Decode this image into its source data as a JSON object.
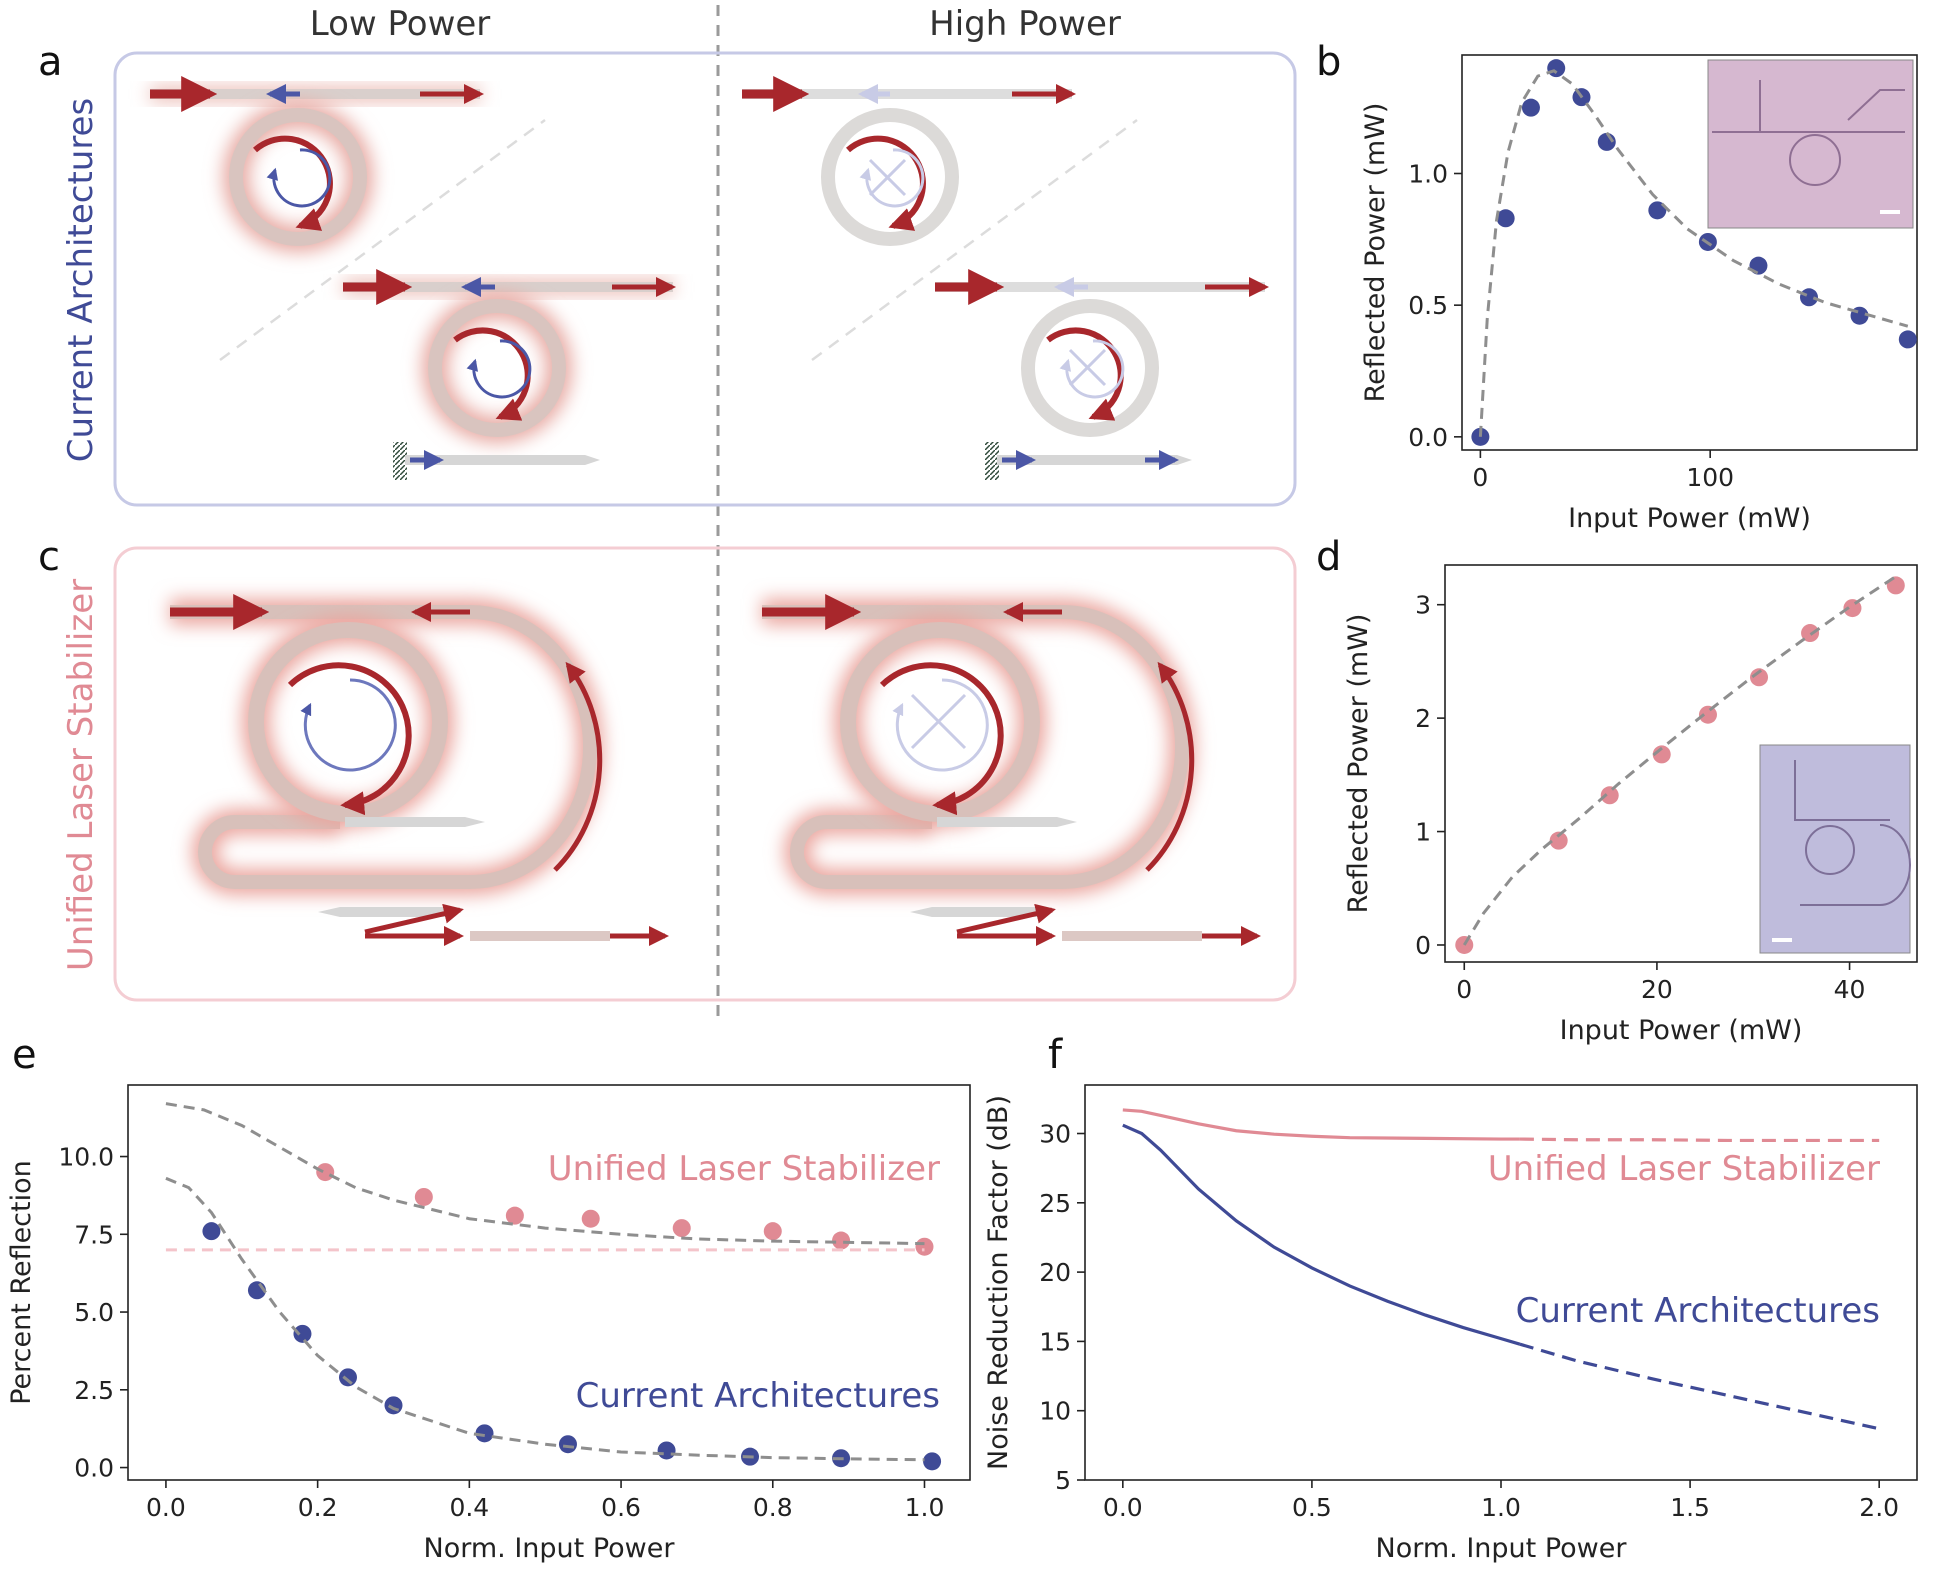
{
  "figure": {
    "column_headers": {
      "left": "Low Power",
      "right": "High Power"
    },
    "panel_letters": {
      "a": "a",
      "b": "b",
      "c": "c",
      "d": "d",
      "e": "e",
      "f": "f"
    },
    "row_labels": {
      "current": "Current Architectures",
      "unified": "Unified Laser Stabilizer"
    },
    "colors": {
      "blue": "#3f4a96",
      "pink": "#e08a94",
      "red": "#a8272c",
      "grey": "#8e8e8e",
      "current_box": "#c6c9e6",
      "unified_box": "#f4cdd3"
    }
  },
  "chart_data": [
    {
      "id": "b",
      "type": "scatter",
      "xlabel": "Input Power (mW)",
      "ylabel": "Reflected Power (mW)",
      "xlim": [
        -8,
        190
      ],
      "ylim": [
        -0.05,
        1.45
      ],
      "xticks": [
        0,
        100
      ],
      "xtick_labels": [
        "0",
        "100"
      ],
      "yticks": [
        0.0,
        0.5,
        1.0
      ],
      "ytick_labels": [
        "0.0",
        "0.5",
        "1.0"
      ],
      "series": [
        {
          "name": "measured",
          "color": "#3f4a96",
          "x": [
            0,
            11,
            22,
            33,
            44,
            55,
            77,
            99,
            121,
            143,
            165,
            186
          ],
          "y": [
            0.0,
            0.83,
            1.25,
            1.4,
            1.29,
            1.12,
            0.86,
            0.74,
            0.65,
            0.53,
            0.46,
            0.37
          ]
        },
        {
          "name": "fit",
          "style": "dashed",
          "color": "#8e8e8e",
          "x": [
            0,
            3,
            7,
            12,
            18,
            25,
            32,
            40,
            50,
            60,
            75,
            90,
            110,
            130,
            150,
            170,
            186
          ],
          "y": [
            0.0,
            0.45,
            0.82,
            1.08,
            1.27,
            1.37,
            1.39,
            1.34,
            1.22,
            1.09,
            0.92,
            0.79,
            0.67,
            0.58,
            0.51,
            0.46,
            0.42
          ]
        }
      ]
    },
    {
      "id": "d",
      "type": "scatter",
      "xlabel": "Input Power (mW)",
      "ylabel": "Reflected Power (mW)",
      "xlim": [
        -2,
        47
      ],
      "ylim": [
        -0.15,
        3.35
      ],
      "xticks": [
        0,
        20,
        40
      ],
      "xtick_labels": [
        "0",
        "20",
        "40"
      ],
      "yticks": [
        0,
        1,
        2,
        3
      ],
      "ytick_labels": [
        "0",
        "1",
        "2",
        "3"
      ],
      "series": [
        {
          "name": "measured",
          "color": "#e08a94",
          "x": [
            0,
            9.8,
            15.1,
            20.5,
            25.3,
            30.6,
            35.9,
            40.3,
            44.8
          ],
          "y": [
            0.0,
            0.92,
            1.32,
            1.68,
            2.03,
            2.36,
            2.75,
            2.97,
            3.17
          ]
        },
        {
          "name": "fit",
          "style": "dashed",
          "color": "#8e8e8e",
          "x": [
            0,
            2,
            5,
            8,
            12,
            16,
            20,
            25,
            30,
            35,
            40,
            45
          ],
          "y": [
            0.0,
            0.28,
            0.6,
            0.84,
            1.12,
            1.42,
            1.7,
            2.04,
            2.37,
            2.68,
            2.98,
            3.26
          ]
        }
      ]
    },
    {
      "id": "e",
      "type": "scatter",
      "xlabel": "Norm. Input Power",
      "ylabel": "Percent Reflection",
      "xlim": [
        -0.05,
        1.06
      ],
      "ylim": [
        -0.4,
        12.3
      ],
      "xticks": [
        0.0,
        0.2,
        0.4,
        0.6,
        0.8,
        1.0
      ],
      "xtick_labels": [
        "0.0",
        "0.2",
        "0.4",
        "0.6",
        "0.8",
        "1.0"
      ],
      "yticks": [
        0.0,
        2.5,
        5.0,
        7.5,
        10.0
      ],
      "ytick_labels": [
        "0.0",
        "2.5",
        "5.0",
        "7.5",
        "10.0"
      ],
      "series": [
        {
          "name": "Unified Laser Stabilizer",
          "color": "#e08a94",
          "x": [
            0.21,
            0.34,
            0.46,
            0.56,
            0.68,
            0.8,
            0.89,
            1.0
          ],
          "y": [
            9.5,
            8.7,
            8.1,
            8.0,
            7.7,
            7.6,
            7.3,
            7.1
          ]
        },
        {
          "name": "Current Architectures",
          "color": "#3f4a96",
          "x": [
            0.06,
            0.12,
            0.18,
            0.24,
            0.3,
            0.42,
            0.53,
            0.66,
            0.77,
            0.89,
            1.01
          ],
          "y": [
            7.6,
            5.7,
            4.3,
            2.9,
            2.0,
            1.1,
            0.75,
            0.55,
            0.35,
            0.3,
            0.2
          ]
        },
        {
          "name": "unified fit",
          "style": "dashed",
          "color": "#8e8e8e",
          "x": [
            0.0,
            0.05,
            0.1,
            0.15,
            0.2,
            0.25,
            0.3,
            0.4,
            0.5,
            0.6,
            0.7,
            0.8,
            0.9,
            1.0
          ],
          "y": [
            11.7,
            11.5,
            11.0,
            10.3,
            9.6,
            9.0,
            8.6,
            8.0,
            7.7,
            7.5,
            7.35,
            7.28,
            7.24,
            7.2
          ]
        },
        {
          "name": "current fit",
          "style": "dashed",
          "color": "#8e8e8e",
          "x": [
            0.0,
            0.03,
            0.06,
            0.1,
            0.15,
            0.2,
            0.25,
            0.3,
            0.4,
            0.5,
            0.6,
            0.7,
            0.8,
            0.9,
            1.0
          ],
          "y": [
            9.3,
            9.0,
            8.2,
            6.7,
            5.0,
            3.6,
            2.6,
            1.9,
            1.1,
            0.75,
            0.5,
            0.4,
            0.32,
            0.28,
            0.25
          ]
        },
        {
          "name": "floor",
          "style": "dashed",
          "color": "#f4c4ca",
          "x": [
            0.0,
            1.0
          ],
          "y": [
            7.0,
            7.0
          ]
        }
      ],
      "annotations": [
        {
          "text": "Unified Laser Stabilizer",
          "color": "#e08a94"
        },
        {
          "text": "Current Architectures",
          "color": "#3f4a96"
        }
      ]
    },
    {
      "id": "f",
      "type": "line",
      "xlabel": "Norm. Input Power",
      "ylabel": "Noise Reduction Factor (dB)",
      "xlim": [
        -0.1,
        2.1
      ],
      "ylim": [
        5,
        33.5
      ],
      "xticks": [
        0.0,
        0.5,
        1.0,
        1.5,
        2.0
      ],
      "xtick_labels": [
        "0.0",
        "0.5",
        "1.0",
        "1.5",
        "2.0"
      ],
      "yticks": [
        5,
        10,
        15,
        20,
        25,
        30
      ],
      "ytick_labels": [
        "5",
        "10",
        "15",
        "20",
        "25",
        "30"
      ],
      "series": [
        {
          "name": "Unified Laser Stabilizer",
          "color": "#e08a94",
          "x": [
            0.0,
            0.05,
            0.1,
            0.2,
            0.3,
            0.4,
            0.5,
            0.6,
            0.8,
            1.0,
            1.05,
            1.2,
            1.4,
            1.6,
            1.8,
            2.0
          ],
          "y": [
            31.7,
            31.6,
            31.3,
            30.7,
            30.2,
            29.95,
            29.8,
            29.7,
            29.65,
            29.6,
            29.6,
            29.55,
            29.55,
            29.5,
            29.5,
            29.5
          ]
        },
        {
          "name": "Current Architectures",
          "color": "#3f4a96",
          "x": [
            0.0,
            0.05,
            0.1,
            0.2,
            0.3,
            0.4,
            0.5,
            0.6,
            0.7,
            0.8,
            0.9,
            1.0,
            1.05,
            1.2,
            1.4,
            1.6,
            1.8,
            2.0
          ],
          "y": [
            30.6,
            30.0,
            28.8,
            26.0,
            23.7,
            21.8,
            20.3,
            19.0,
            17.9,
            16.9,
            16.0,
            15.2,
            14.8,
            13.6,
            12.3,
            11.1,
            9.9,
            8.7
          ]
        }
      ],
      "annotations": [
        {
          "text": "Unified Laser Stabilizer",
          "color": "#e08a94"
        },
        {
          "text": "Current Architectures",
          "color": "#3f4a96"
        }
      ]
    }
  ]
}
